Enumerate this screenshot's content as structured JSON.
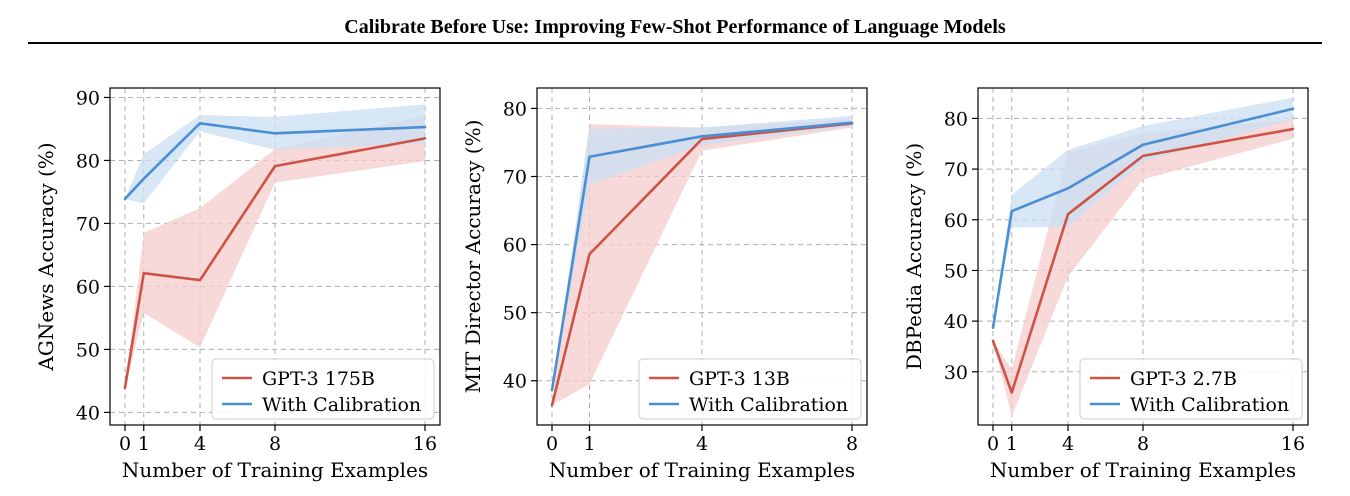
{
  "header": {
    "title": "Calibrate Before Use: Improving Few-Shot Performance of Language Models"
  },
  "colors": {
    "gpt3": "#cc5446",
    "gpt3_band": "#f4cccc",
    "calibration": "#4a8fd4",
    "calibration_band": "#c9dff3",
    "grid": "#b0b0b0"
  },
  "chart_data": [
    {
      "type": "line",
      "xlabel": "Number of Training Examples",
      "ylabel": "AGNews Accuracy (%)",
      "xlim": [
        -0.8,
        16.8
      ],
      "ylim": [
        38,
        91.5
      ],
      "xticks": [
        0,
        1,
        4,
        8,
        16
      ],
      "yticks": [
        40,
        50,
        60,
        70,
        80,
        90
      ],
      "grid": true,
      "legend_position": "bottom-right",
      "series": [
        {
          "name": "GPT-3 175B",
          "color_key": "gpt3",
          "x": [
            0,
            1,
            4,
            8,
            16
          ],
          "y": [
            43.9,
            62.1,
            61.0,
            79.1,
            83.5
          ],
          "lower": [
            43.9,
            55.8,
            50.3,
            76.5,
            79.9
          ],
          "upper": [
            43.9,
            68.5,
            72.4,
            81.8,
            87.1
          ]
        },
        {
          "name": "With Calibration",
          "color_key": "calibration",
          "x": [
            0,
            1,
            4,
            8,
            16
          ],
          "y": [
            73.9,
            77.1,
            85.9,
            84.3,
            85.3
          ],
          "lower": [
            73.9,
            73.2,
            84.6,
            81.7,
            82.7
          ],
          "upper": [
            73.9,
            81.0,
            87.2,
            86.9,
            88.9
          ]
        }
      ]
    },
    {
      "type": "line",
      "xlabel": "Number of Training Examples",
      "ylabel": "MIT Director Accuracy (%)",
      "xlim": [
        -0.4,
        8.4
      ],
      "ylim": [
        33.5,
        83
      ],
      "xticks": [
        0,
        1,
        4,
        8
      ],
      "yticks": [
        40,
        50,
        60,
        70,
        80
      ],
      "grid": true,
      "legend_position": "bottom-right",
      "series": [
        {
          "name": "GPT-3 13B",
          "color_key": "gpt3",
          "x": [
            0,
            1,
            4,
            8
          ],
          "y": [
            36.4,
            58.6,
            75.5,
            77.8
          ],
          "lower": [
            36.4,
            39.5,
            73.8,
            77.2
          ],
          "upper": [
            36.4,
            77.7,
            77.2,
            78.4
          ]
        },
        {
          "name": "With Calibration",
          "color_key": "calibration",
          "x": [
            0,
            1,
            4,
            8
          ],
          "y": [
            38.6,
            72.9,
            75.9,
            77.9
          ],
          "lower": [
            38.6,
            68.8,
            74.6,
            77.4
          ],
          "upper": [
            38.6,
            77.0,
            77.2,
            78.9
          ]
        }
      ]
    },
    {
      "type": "line",
      "xlabel": "Number of Training Examples",
      "ylabel": "DBPedia Accuracy (%)",
      "xlim": [
        -0.8,
        16.8
      ],
      "ylim": [
        19.5,
        86
      ],
      "xticks": [
        0,
        1,
        4,
        8,
        16
      ],
      "yticks": [
        30,
        40,
        50,
        60,
        70,
        80
      ],
      "grid": true,
      "legend_position": "bottom-right",
      "series": [
        {
          "name": "GPT-3 2.7B",
          "color_key": "gpt3",
          "x": [
            0,
            1,
            4,
            8,
            16
          ],
          "y": [
            36.1,
            25.9,
            61.1,
            72.6,
            77.9
          ],
          "lower": [
            36.1,
            21.2,
            48.8,
            68.0,
            76.0
          ],
          "upper": [
            36.1,
            30.5,
            73.3,
            77.1,
            79.8
          ]
        },
        {
          "name": "With Calibration",
          "color_key": "calibration",
          "x": [
            0,
            1,
            4,
            8,
            16
          ],
          "y": [
            38.7,
            61.7,
            66.2,
            74.8,
            81.9
          ],
          "lower": [
            38.7,
            58.5,
            58.6,
            71.5,
            79.8
          ],
          "upper": [
            38.7,
            64.9,
            73.8,
            78.5,
            84.1
          ]
        }
      ]
    }
  ]
}
